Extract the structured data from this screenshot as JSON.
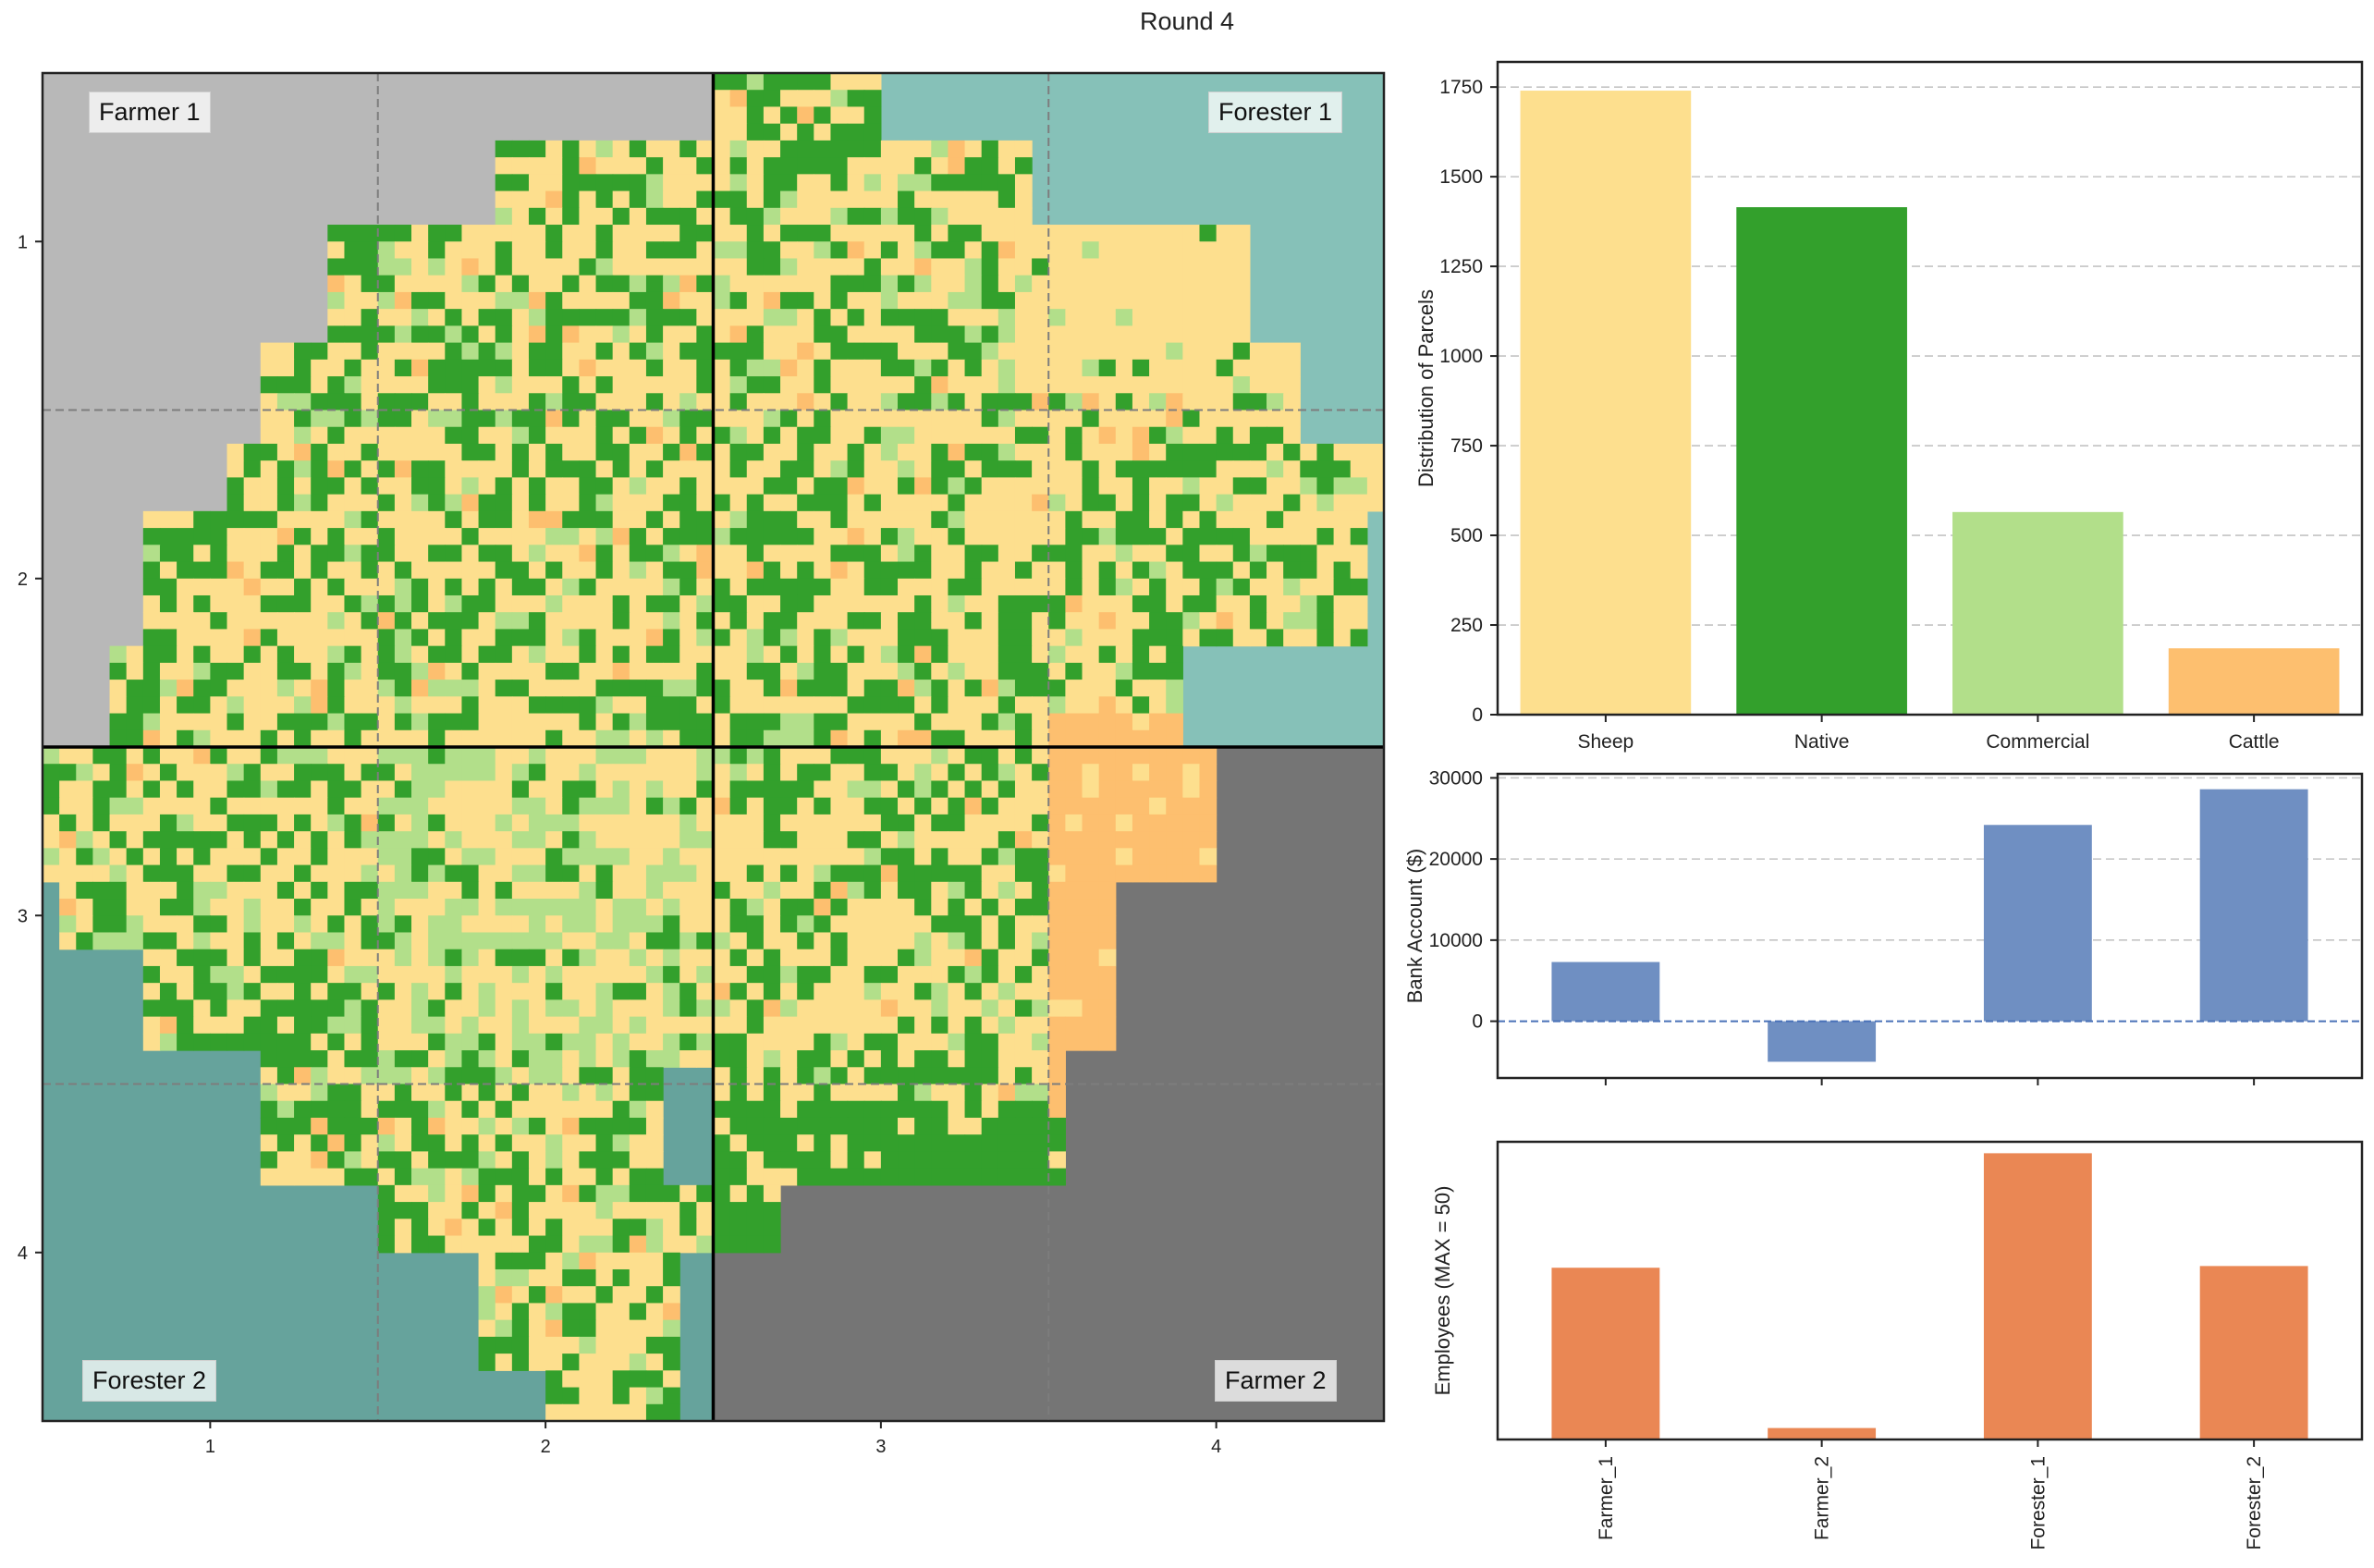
{
  "title": "Round 4",
  "colors": {
    "sheep": "#fddf8e",
    "native": "#33a02c",
    "commercial": "#b2df8a",
    "cattle": "#fdbf6f",
    "farmer1_bg": "#b8b8b8",
    "forester1_bg": "#86c1b8",
    "forester2_bg": "#66a39c",
    "farmer2_bg": "#757575",
    "bank_bar": "#6f8fc2",
    "employee_bar": "#ea8754"
  },
  "map": {
    "quadrant_labels": [
      "Farmer 1",
      "Forester 1",
      "Forester 2",
      "Farmer 2"
    ],
    "x_ticks": [
      "1",
      "2",
      "3",
      "4"
    ],
    "y_ticks": [
      "1",
      "2",
      "3",
      "4"
    ]
  },
  "chart_data": [
    {
      "type": "heatmap",
      "title": "Round 4",
      "xlabel": "",
      "ylabel": "",
      "xlim": [
        0.5,
        4.5
      ],
      "ylim": [
        4.5,
        0.5
      ],
      "x_ticks": [
        1,
        2,
        3,
        4
      ],
      "y_ticks": [
        1,
        2,
        3,
        4
      ],
      "categories": [
        "Sheep",
        "Native",
        "Commercial",
        "Cattle"
      ],
      "quadrants": [
        {
          "name": "Farmer 1",
          "x": [
            0.5,
            2.5
          ],
          "y": [
            0.5,
            2.5
          ]
        },
        {
          "name": "Forester 1",
          "x": [
            2.5,
            4.5
          ],
          "y": [
            0.5,
            2.5
          ]
        },
        {
          "name": "Forester 2",
          "x": [
            0.5,
            2.5
          ],
          "y": [
            2.5,
            4.5
          ]
        },
        {
          "name": "Farmer 2",
          "x": [
            2.5,
            4.5
          ],
          "y": [
            2.5,
            4.5
          ]
        }
      ],
      "grid": "dashed lines at 1.5 and 3.5"
    },
    {
      "type": "bar",
      "categories": [
        "Sheep",
        "Native",
        "Commercial",
        "Cattle"
      ],
      "values": [
        1740,
        1415,
        565,
        185
      ],
      "ylabel": "Distribution of Parcels",
      "xlabel": "",
      "ylim": [
        0,
        1820
      ],
      "y_ticks": [
        0,
        250,
        500,
        750,
        1000,
        1250,
        1500,
        1750
      ],
      "grid": true
    },
    {
      "type": "bar",
      "categories": [
        "Farmer_1",
        "Farmer_2",
        "Forester_1",
        "Forester_2"
      ],
      "values": [
        7300,
        -5000,
        24200,
        28600
      ],
      "ylabel": "Bank Account ($)",
      "xlabel": "",
      "ylim": [
        -7000,
        30500
      ],
      "y_ticks": [
        0,
        10000,
        20000,
        30000
      ],
      "grid": true
    },
    {
      "type": "bar",
      "categories": [
        "Farmer_1",
        "Farmer_2",
        "Forester_1",
        "Forester_2"
      ],
      "values": [
        30,
        2,
        50,
        30.3
      ],
      "ylabel": "Employees (MAX = 50)",
      "xlabel": "",
      "ylim": [
        0,
        52
      ]
    }
  ]
}
